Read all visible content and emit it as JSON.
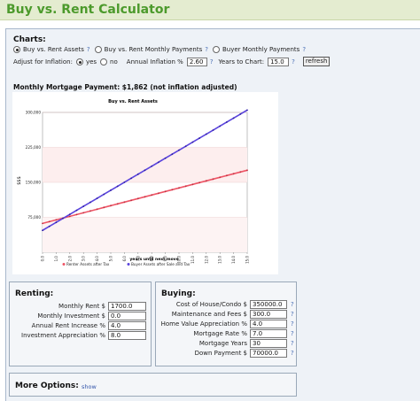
{
  "header": {
    "title": "Buy vs. Rent Calculator"
  },
  "charts_section": {
    "label": "Charts:",
    "options": [
      {
        "label": "Buy vs. Rent Assets",
        "selected": true
      },
      {
        "label": "Buy vs. Rent Monthly Payments",
        "selected": false
      },
      {
        "label": "Buyer Monthly Payments",
        "selected": false
      }
    ],
    "help": "?",
    "adjust_label": "Adjust for Inflation:",
    "adjust_yes": "yes",
    "adjust_no": "no",
    "inflation_label": "Annual Inflation %",
    "inflation_value": "2.60",
    "years_label": "Years to Chart:",
    "years_value": "15.0",
    "refresh_label": "refresh"
  },
  "mortgage_line": "Monthly Mortgage Payment: $1,862   (not inflation adjusted)",
  "chart_data": {
    "type": "line",
    "title": "Buy vs. Rent Assets",
    "xlabel": "years until next move",
    "ylabel": "$$$",
    "x": [
      0,
      0.5,
      1,
      1.5,
      2,
      2.5,
      3,
      3.5,
      4,
      4.5,
      5,
      5.5,
      6,
      6.5,
      7,
      7.5,
      8,
      8.5,
      9,
      9.5,
      10,
      10.5,
      11,
      11.5,
      12,
      12.5,
      13,
      13.5,
      14,
      14.5,
      15
    ],
    "x_ticks": [
      "0.0",
      "1.0",
      "2.0",
      "3.0",
      "4.0",
      "5.0",
      "6.0",
      "7.0",
      "8.0",
      "9.0",
      "10.0",
      "11.0",
      "12.0",
      "13.0",
      "14.0",
      "15.0"
    ],
    "xlim": [
      0,
      15
    ],
    "y_ticks": [
      "75,000",
      "150,000",
      "225,000",
      "300,000"
    ],
    "ylim": [
      0,
      300000
    ],
    "series": [
      {
        "name": "Renter Assets after Tax",
        "color": "#ee5566",
        "values": [
          62000,
          65800,
          69600,
          73400,
          77200,
          81000,
          84800,
          88600,
          92400,
          96200,
          100000,
          103800,
          107600,
          111400,
          115200,
          119000,
          122800,
          126600,
          130400,
          134200,
          138000,
          141800,
          145600,
          149400,
          153200,
          157000,
          160800,
          164600,
          168400,
          172200,
          176000
        ]
      },
      {
        "name": "Buyer Assets after Sale and Tax",
        "color": "#5a44dd",
        "values": [
          47000,
          55600,
          64200,
          72800,
          81400,
          90000,
          98600,
          107200,
          115800,
          124400,
          133000,
          141600,
          150200,
          158800,
          167400,
          176000,
          184600,
          193200,
          201800,
          210400,
          219000,
          227600,
          236200,
          244800,
          253400,
          262000,
          270600,
          279200,
          287800,
          296400,
          305000
        ]
      }
    ],
    "grid": true,
    "legend": "bottom"
  },
  "renting": {
    "title": "Renting:",
    "fields": [
      {
        "label": "Monthly Rent $",
        "value": "1700.0"
      },
      {
        "label": "Monthly Investment $",
        "value": "0.0"
      },
      {
        "label": "Annual Rent Increase %",
        "value": "4.0"
      },
      {
        "label": "Investment Appreciation %",
        "value": "8.0"
      }
    ]
  },
  "buying": {
    "title": "Buying:",
    "fields": [
      {
        "label": "Cost of House/Condo $",
        "value": "350000.0"
      },
      {
        "label": "Maintenance and Fees $",
        "value": "300.0"
      },
      {
        "label": "Home Value Appreciation %",
        "value": "4.0"
      },
      {
        "label": "Mortgage Rate %",
        "value": "7.0"
      },
      {
        "label": "Mortgage Years",
        "value": "30"
      },
      {
        "label": "Down Payment $",
        "value": "70000.0"
      }
    ]
  },
  "more_options": {
    "title": "More Options:",
    "link": "show"
  },
  "colors": {
    "header_bg": "#e4ecd0",
    "title_green": "#4c9a2c",
    "panel_bg": "#eef2f7"
  }
}
